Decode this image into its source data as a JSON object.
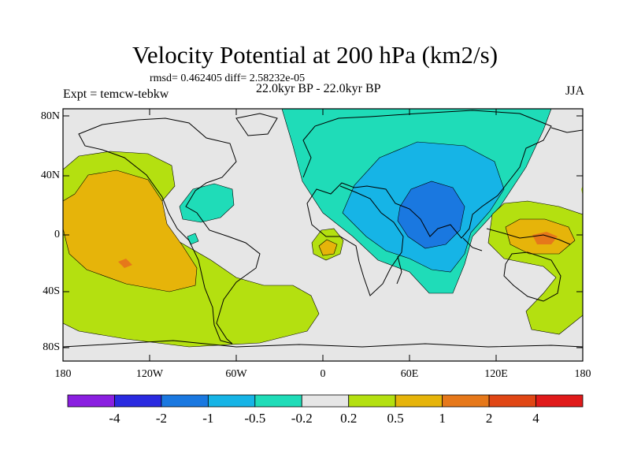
{
  "title": "Velocity Potential at 200 hPa (km2/s)",
  "stats": "rmsd= 0.462405 diff= 2.58232e-05",
  "experiment": "Expt = temcw-tebkw",
  "period": "22.0kyr BP - 22.0kyr BP",
  "season": "JJA",
  "lat_labels": [
    "80N",
    "40N",
    "0",
    "40S",
    "80S"
  ],
  "lon_labels": [
    "180",
    "120W",
    "60W",
    "0",
    "60E",
    "120E",
    "180"
  ],
  "colorbar": {
    "labels": [
      "-4",
      "-2",
      "-1",
      "-0.5",
      "-0.2",
      "0.2",
      "0.5",
      "1",
      "2",
      "4"
    ],
    "colors": [
      "#8a1fe0",
      "#2a2ae0",
      "#1a78e0",
      "#16b4e6",
      "#1fdcb8",
      "#e6e6e6",
      "#b4e010",
      "#e6b40a",
      "#e6781a",
      "#e04614",
      "#e01a1a"
    ]
  }
}
